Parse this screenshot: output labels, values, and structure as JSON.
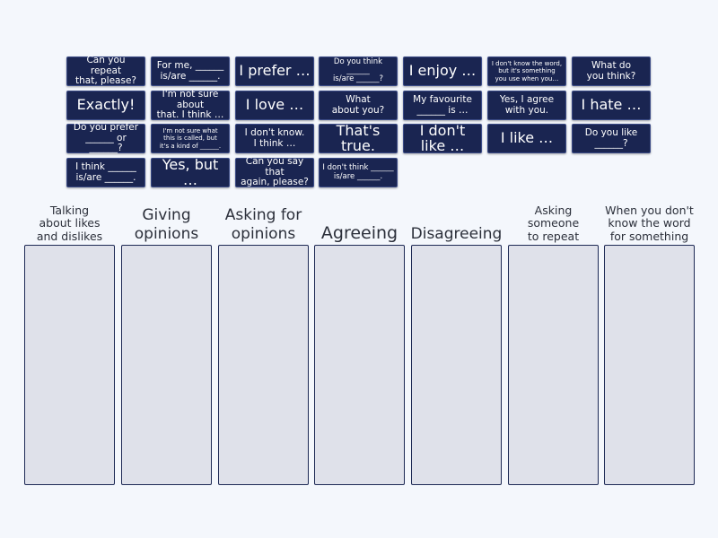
{
  "cards": [
    {
      "text": "Can you repeat\nthat, please?",
      "size": "s-m"
    },
    {
      "text": "For me, ______\nis/are ______.",
      "size": "s-m"
    },
    {
      "text": "I prefer …",
      "size": "s-xl"
    },
    {
      "text": "Do you think ______\nis/are ______?",
      "size": "s-s"
    },
    {
      "text": "I enjoy …",
      "size": "s-xl"
    },
    {
      "text": "I don't know the word,\nbut it's something\nyou use when you…",
      "size": "s-xs"
    },
    {
      "text": "What do\nyou think?",
      "size": "s-m"
    },
    {
      "text": "Exactly!",
      "size": "s-xl"
    },
    {
      "text": "I'm not sure about\nthat. I think …",
      "size": "s-m"
    },
    {
      "text": "I love …",
      "size": "s-xl"
    },
    {
      "text": "What\nabout you?",
      "size": "s-m"
    },
    {
      "text": "My favourite\n______ is …",
      "size": "s-m"
    },
    {
      "text": "Yes, I agree\nwith you.",
      "size": "s-m"
    },
    {
      "text": "I hate …",
      "size": "s-xl"
    },
    {
      "text": "Do you prefer\n______ or ______?",
      "size": "s-m"
    },
    {
      "text": "I'm not sure what\nthis is called, but\nit's a kind of ______.",
      "size": "s-xs"
    },
    {
      "text": "I don't know.\nI think …",
      "size": "s-m"
    },
    {
      "text": "That's true.",
      "size": "s-xl"
    },
    {
      "text": "I don't like …",
      "size": "s-xl"
    },
    {
      "text": "I like …",
      "size": "s-xl"
    },
    {
      "text": "Do you like\n______?",
      "size": "s-m"
    },
    {
      "text": "I think ______\nis/are ______.",
      "size": "s-m"
    },
    {
      "text": "Yes, but …",
      "size": "s-xl"
    },
    {
      "text": "Can you say that\nagain, please?",
      "size": "s-m"
    },
    {
      "text": "I don't think ______\nis/are ______.",
      "size": "s-s"
    }
  ],
  "zones": [
    {
      "title": "Talking\nabout likes\nand dislikes",
      "size": "zt-s"
    },
    {
      "title": "Giving\nopinions",
      "size": "zt-m"
    },
    {
      "title": "Asking for\nopinions",
      "size": "zt-m"
    },
    {
      "title": "Agreeing",
      "size": "zt-l"
    },
    {
      "title": "Disagreeing",
      "size": "zt-n"
    },
    {
      "title": "Asking\nsomeone\nto repeat",
      "size": "zt-s"
    },
    {
      "title": "When you don't\nknow the word\nfor something",
      "size": "zt-s"
    }
  ]
}
